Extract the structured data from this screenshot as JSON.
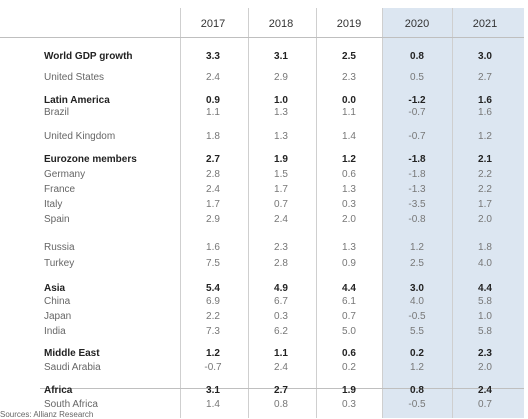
{
  "years": [
    "2017",
    "2018",
    "2019",
    "2020",
    "2021"
  ],
  "rows": [
    {
      "label": "World GDP growth",
      "bold": true,
      "values": [
        "3.3",
        "3.1",
        "2.5",
        "0.8",
        "3.0"
      ]
    },
    {
      "label": "United States",
      "bold": false,
      "values": [
        "2.4",
        "2.9",
        "2.3",
        "0.5",
        "2.7"
      ]
    },
    {
      "label": "Latin America",
      "bold": true,
      "values": [
        "0.9",
        "1.0",
        "0.0",
        "-1.2",
        "1.6"
      ]
    },
    {
      "label": "Brazil",
      "bold": false,
      "values": [
        "1.1",
        "1.3",
        "1.1",
        "-0.7",
        "1.6"
      ]
    },
    {
      "label": "United Kingdom",
      "bold": false,
      "values": [
        "1.8",
        "1.3",
        "1.4",
        "-0.7",
        "1.2"
      ]
    },
    {
      "label": "Eurozone members",
      "bold": true,
      "values": [
        "2.7",
        "1.9",
        "1.2",
        "-1.8",
        "2.1"
      ]
    },
    {
      "label": "Germany",
      "bold": false,
      "values": [
        "2.8",
        "1.5",
        "0.6",
        "-1.8",
        "2.2"
      ]
    },
    {
      "label": "France",
      "bold": false,
      "values": [
        "2.4",
        "1.7",
        "1.3",
        "-1.3",
        "2.2"
      ]
    },
    {
      "label": "Italy",
      "bold": false,
      "values": [
        "1.7",
        "0.7",
        "0.3",
        "-3.5",
        "1.7"
      ]
    },
    {
      "label": "Spain",
      "bold": false,
      "values": [
        "2.9",
        "2.4",
        "2.0",
        "-0.8",
        "2.0"
      ]
    },
    {
      "label": "Russia",
      "bold": false,
      "values": [
        "1.6",
        "2.3",
        "1.3",
        "1.2",
        "1.8"
      ]
    },
    {
      "label": "Turkey",
      "bold": false,
      "values": [
        "7.5",
        "2.8",
        "0.9",
        "2.5",
        "4.0"
      ]
    },
    {
      "label": "Asia",
      "bold": true,
      "values": [
        "5.4",
        "4.9",
        "4.4",
        "3.0",
        "4.4"
      ]
    },
    {
      "label": "China",
      "bold": false,
      "values": [
        "6.9",
        "6.7",
        "6.1",
        "4.0",
        "5.8"
      ]
    },
    {
      "label": "Japan",
      "bold": false,
      "values": [
        "2.2",
        "0.3",
        "0.7",
        "-0.5",
        "1.0"
      ]
    },
    {
      "label": "India",
      "bold": false,
      "values": [
        "7.3",
        "6.2",
        "5.0",
        "5.5",
        "5.8"
      ]
    },
    {
      "label": "Middle East",
      "bold": true,
      "values": [
        "1.2",
        "1.1",
        "0.6",
        "0.2",
        "2.3"
      ]
    },
    {
      "label": "Saudi Arabia",
      "bold": false,
      "values": [
        "-0.7",
        "2.4",
        "0.2",
        "1.2",
        "2.0"
      ]
    },
    {
      "label": "Africa",
      "bold": true,
      "values": [
        "3.1",
        "2.7",
        "1.9",
        "0.8",
        "2.4"
      ]
    },
    {
      "label": "South Africa",
      "bold": false,
      "values": [
        "1.4",
        "0.8",
        "0.3",
        "-0.5",
        "0.7"
      ]
    }
  ],
  "source": "Sources: Allianz Research",
  "colors": {
    "forecast_shade": "#dce6f1",
    "rule": "#bfbfbf"
  }
}
